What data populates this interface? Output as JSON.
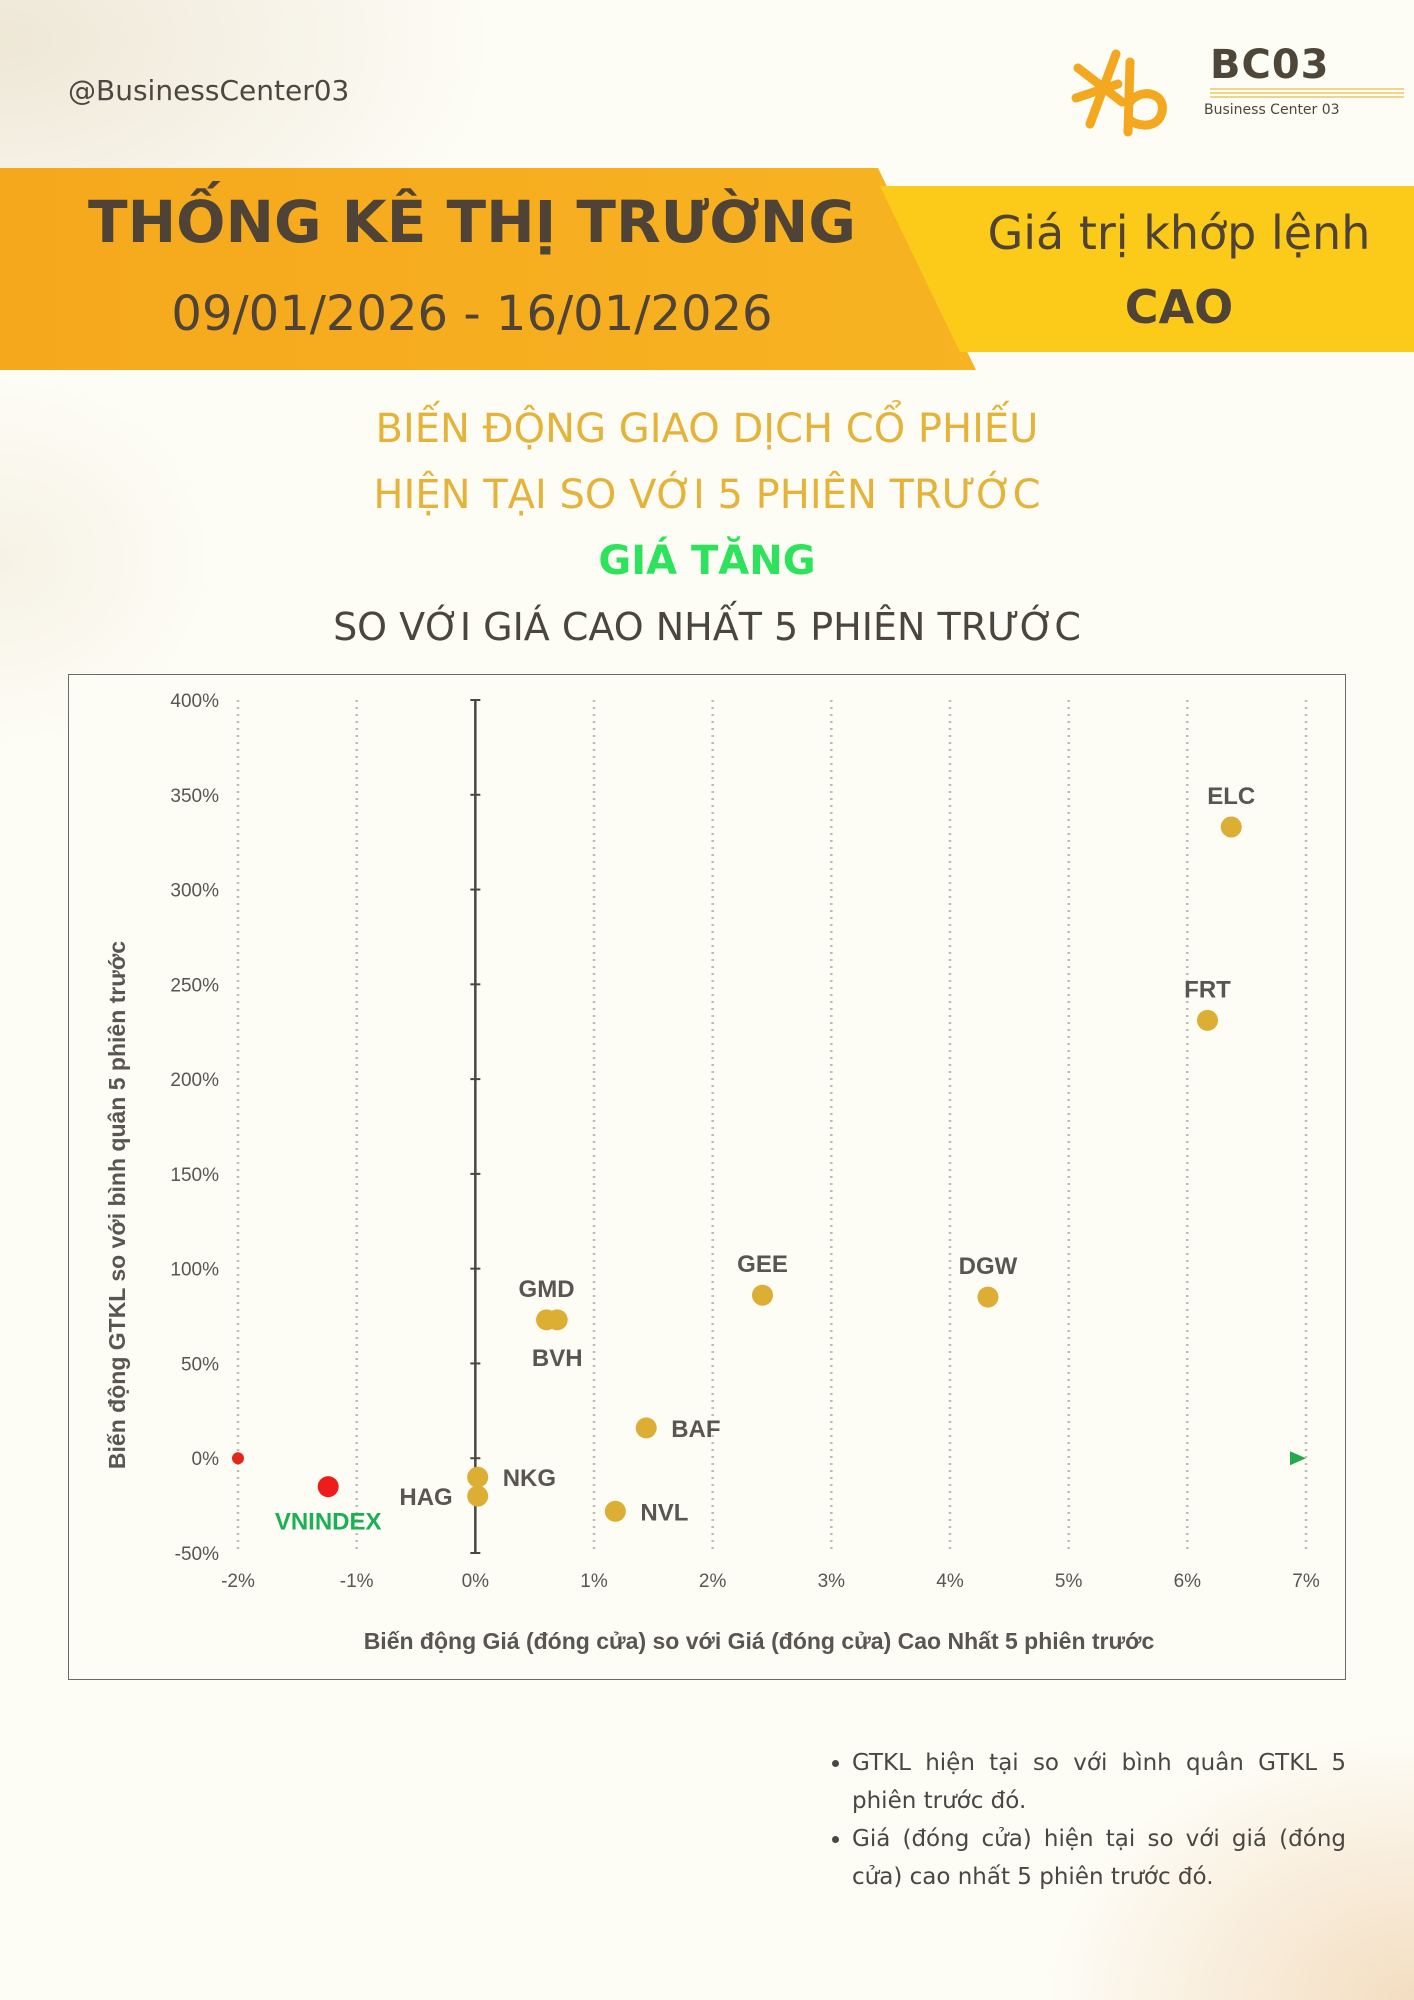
{
  "header": {
    "handle": "@BusinessCenter03",
    "logo_text": "BC03",
    "logo_subtitle": "Business Center 03"
  },
  "banner": {
    "title": "THỐNG KÊ THỊ TRƯỜNG",
    "date_range": "09/01/2026 - 16/01/2026",
    "metric_label": "Giá trị khớp lệnh",
    "metric_level": "CAO"
  },
  "subtitle": {
    "line1": "BIẾN ĐỘNG GIAO DỊCH CỔ PHIẾU",
    "line2": "HIỆN TẠI SO VỚI 5 PHIÊN TRƯỚC",
    "highlight": "GIÁ TĂNG",
    "line4": "SO VỚI GIÁ CAO NHẤT 5 PHIÊN TRƯỚC"
  },
  "colors": {
    "banner_orange": "#f6a81c",
    "banner_yellow": "#fccb1a",
    "point_gold": "#dcae34",
    "benchmark_red": "#ef1c1c",
    "benchmark_label_green": "#1bb054",
    "highlight_green": "#2ee35c"
  },
  "chart_data": {
    "type": "scatter",
    "title": "",
    "xlabel": "Biến động Giá (đóng cửa) so với Giá (đóng cửa) Cao Nhất 5 phiên trước",
    "ylabel": "Biến động GTKL so với bình quân 5 phiên trước",
    "xlim": [
      -2,
      7
    ],
    "ylim": [
      -50,
      400
    ],
    "x_ticks": [
      -2,
      -1,
      0,
      1,
      2,
      3,
      4,
      5,
      6,
      7
    ],
    "x_tick_labels": [
      "-2%",
      "-1%",
      "0%",
      "1%",
      "2%",
      "3%",
      "4%",
      "5%",
      "6%",
      "7%"
    ],
    "y_ticks": [
      -50,
      0,
      50,
      100,
      150,
      200,
      250,
      300,
      350,
      400
    ],
    "y_tick_labels": [
      "-50%",
      "0%",
      "50%",
      "100%",
      "150%",
      "200%",
      "250%",
      "300%",
      "350%",
      "400%"
    ],
    "grid": "vertical dotted",
    "points": [
      {
        "label": "ELC",
        "x": 6.37,
        "y": 333,
        "label_pos": "above"
      },
      {
        "label": "FRT",
        "x": 6.17,
        "y": 231,
        "label_pos": "above"
      },
      {
        "label": "DGW",
        "x": 4.32,
        "y": 85,
        "label_pos": "above"
      },
      {
        "label": "GEE",
        "x": 2.42,
        "y": 86,
        "label_pos": "above"
      },
      {
        "label": "GMD",
        "x": 0.6,
        "y": 73,
        "label_pos": "above"
      },
      {
        "label": "BVH",
        "x": 0.69,
        "y": 73,
        "label_pos": "below"
      },
      {
        "label": "BAF",
        "x": 1.44,
        "y": 16,
        "label_pos": "right"
      },
      {
        "label": "NKG",
        "x": 0.02,
        "y": -10,
        "label_pos": "right"
      },
      {
        "label": "HAG",
        "x": 0.02,
        "y": -20,
        "label_pos": "left"
      },
      {
        "label": "NVL",
        "x": 1.18,
        "y": -28,
        "label_pos": "right"
      }
    ],
    "benchmark": {
      "label": "VNINDEX",
      "x": -1.24,
      "y": -15,
      "label_pos": "below"
    }
  },
  "notes": [
    "GTKL hiện tại so với bình quân GTKL 5 phiên trước đó.",
    "Giá (đóng cửa) hiện tại so với giá (đóng cửa) cao nhất 5 phiên trước đó."
  ]
}
